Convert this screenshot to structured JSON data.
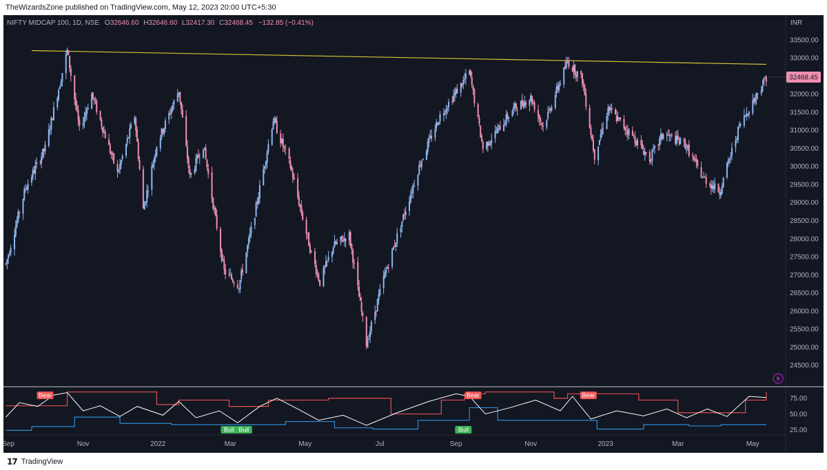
{
  "header": {
    "publisher": "TheWizardsZone published on TradingView.com, May 12, 2023 20:00 UTC+5:30"
  },
  "legend": {
    "symbol": "NIFTY MIDCAP 100, 1D, NSE",
    "open_label": "O",
    "open": "32646.60",
    "high_label": "H",
    "high": "32646.60",
    "low_label": "L",
    "low": "32417.30",
    "close_label": "C",
    "close": "32468.45",
    "change": "−132.85 (−0.41%)"
  },
  "currency": "INR",
  "last_price_badge": "32468.45",
  "brand": "TradingView",
  "colors": {
    "background": "#131722",
    "up_candle": "#8fb8f0",
    "down_candle": "#f090b0",
    "trendline": "#d6c637",
    "upper_band": "#e05050",
    "lower_band": "#2e8bd6",
    "oscillator": "#ffffff",
    "bear_label": "#f05555",
    "bull_label": "#3db255"
  },
  "chart_data": [
    {
      "type": "candlestick",
      "title": "NIFTY MIDCAP 100, 1D, NSE",
      "ylabel": "INR",
      "ylim": [
        24000,
        33800
      ],
      "y_ticks": [
        "33500.00",
        "33000.00",
        "32500.00",
        "32000.00",
        "31500.00",
        "31000.00",
        "30500.00",
        "30000.00",
        "29500.00",
        "29000.00",
        "28500.00",
        "28000.00",
        "27500.00",
        "27000.00",
        "26500.00",
        "26000.00",
        "25500.00",
        "25000.00",
        "24500.00"
      ],
      "x_ticks": [
        "Sep",
        "Nov",
        "2022",
        "Mar",
        "May",
        "Jul",
        "Sep",
        "Nov",
        "2023",
        "Mar",
        "May"
      ],
      "price_path": [
        [
          "Aug-30-2021",
          27300
        ],
        [
          "Sep-15-2021",
          29400
        ],
        [
          "Oct-01-2021",
          30500
        ],
        [
          "Oct-19-2021",
          33200
        ],
        [
          "Oct-29-2021",
          31000
        ],
        [
          "Nov-08-2021",
          32000
        ],
        [
          "Nov-29-2021",
          29800
        ],
        [
          "Dec-13-2021",
          31400
        ],
        [
          "Dec-20-2021",
          28800
        ],
        [
          "Dec-31-2021",
          30600
        ],
        [
          "Jan-18-2022",
          32100
        ],
        [
          "Jan-27-2022",
          29700
        ],
        [
          "Feb-07-2022",
          30600
        ],
        [
          "Feb-24-2022",
          27100
        ],
        [
          "Mar-08-2022",
          26700
        ],
        [
          "Mar-21-2022",
          28700
        ],
        [
          "Apr-05-2022",
          31300
        ],
        [
          "Apr-19-2022",
          30000
        ],
        [
          "May-06-2022",
          27600
        ],
        [
          "May-13-2022",
          26800
        ],
        [
          "May-24-2022",
          27800
        ],
        [
          "Jun-06-2022",
          28100
        ],
        [
          "Jun-20-2022",
          25100
        ],
        [
          "Jul-04-2022",
          26900
        ],
        [
          "Jul-20-2022",
          28600
        ],
        [
          "Aug-03-2022",
          30100
        ],
        [
          "Aug-19-2022",
          31400
        ],
        [
          "Sep-12-2022",
          32600
        ],
        [
          "Sep-23-2022",
          30500
        ],
        [
          "Oct-05-2022",
          31000
        ],
        [
          "Oct-18-2022",
          31600
        ],
        [
          "Nov-01-2022",
          31900
        ],
        [
          "Nov-11-2022",
          31100
        ],
        [
          "Dec-01-2022",
          32900
        ],
        [
          "Dec-13-2022",
          32400
        ],
        [
          "Dec-23-2022",
          30300
        ],
        [
          "Jan-03-2023",
          31600
        ],
        [
          "Jan-24-2023",
          30800
        ],
        [
          "Feb-06-2023",
          30200
        ],
        [
          "Feb-17-2023",
          30900
        ],
        [
          "Mar-07-2023",
          30600
        ],
        [
          "Mar-21-2023",
          29700
        ],
        [
          "Apr-04-2023",
          29300
        ],
        [
          "Apr-20-2023",
          31100
        ],
        [
          "May-12-2023",
          32468
        ]
      ],
      "trendline": {
        "from": [
          "Sep-20-2021",
          33200
        ],
        "to": [
          "May-12-2023",
          32820
        ]
      },
      "last": {
        "date": "May-12-2023",
        "value": 32468.45
      }
    },
    {
      "type": "line",
      "title": "",
      "ylim": [
        20,
        90
      ],
      "y_ticks": [
        "75.00",
        "50.00",
        "25.00"
      ],
      "series": [
        {
          "name": "",
          "role": "upper",
          "x": [
            "Aug-30-2021",
            "Oct-19-2021",
            "Nov-10-2021",
            "Dec-31-2021",
            "Jan-18-2022",
            "Feb-28-2022",
            "Apr-01-2022",
            "May-20-2022",
            "Jul-10-2022",
            "Aug-20-2022",
            "Sep-08-2022",
            "Sep-25-2022",
            "Oct-20-2022",
            "Nov-20-2022",
            "Dec-01-2022",
            "Dec-20-2022",
            "Jan-28-2023",
            "Mar-01-2023",
            "Apr-01-2023",
            "Apr-25-2023",
            "May-12-2023"
          ],
          "values": [
            63,
            85,
            85,
            65,
            72,
            62,
            72,
            75,
            50,
            72,
            82,
            85,
            85,
            75,
            82,
            82,
            72,
            52,
            52,
            72,
            85
          ]
        },
        {
          "name": "",
          "role": "lower",
          "x": [
            "Aug-30-2021",
            "Sep-20-2021",
            "Oct-25-2021",
            "Dec-01-2021",
            "Jan-12-2022",
            "Mar-01-2022",
            "Apr-15-2022",
            "May-25-2022",
            "Jun-25-2022",
            "Aug-01-2022",
            "Sep-12-2022",
            "Oct-05-2022",
            "Nov-25-2022",
            "Dec-25-2022",
            "Feb-01-2023",
            "Mar-10-2023",
            "Apr-05-2023",
            "May-12-2023"
          ],
          "values": [
            24,
            30,
            45,
            35,
            33,
            33,
            38,
            28,
            26,
            40,
            60,
            40,
            40,
            26,
            33,
            31,
            33,
            33
          ]
        },
        {
          "name": "",
          "role": "oscillator",
          "x": [
            "Aug-30-2021",
            "Sep-10-2021",
            "Sep-25-2021",
            "Oct-08-2021",
            "Oct-19-2021",
            "Nov-01-2021",
            "Nov-15-2021",
            "Dec-01-2021",
            "Dec-15-2021",
            "Jan-05-2022",
            "Jan-18-2022",
            "Feb-01-2022",
            "Feb-20-2022",
            "Mar-07-2022",
            "Mar-25-2022",
            "Apr-08-2022",
            "Apr-25-2022",
            "May-12-2022",
            "Jun-01-2022",
            "Jun-20-2022",
            "Jul-15-2022",
            "Aug-10-2022",
            "Sep-01-2022",
            "Sep-12-2022",
            "Sep-25-2022",
            "Oct-15-2022",
            "Nov-05-2022",
            "Nov-25-2022",
            "Dec-05-2022",
            "Dec-20-2022",
            "Jan-10-2023",
            "Feb-01-2023",
            "Feb-20-2023",
            "Mar-08-2023",
            "Mar-25-2023",
            "Apr-10-2023",
            "Apr-28-2023",
            "May-12-2023"
          ],
          "values": [
            45,
            68,
            62,
            80,
            84,
            55,
            63,
            46,
            62,
            48,
            70,
            44,
            55,
            36,
            62,
            75,
            58,
            40,
            48,
            32,
            52,
            70,
            82,
            78,
            50,
            60,
            72,
            55,
            78,
            42,
            55,
            47,
            58,
            44,
            58,
            46,
            78,
            76
          ]
        }
      ],
      "annotations": [
        {
          "text": "Bear",
          "x": "Oct-01-2021"
        },
        {
          "text": "Bull",
          "x": "Feb-28-2022"
        },
        {
          "text": "Bull",
          "x": "Mar-12-2022"
        },
        {
          "text": "Bear",
          "x": "Sep-15-2022"
        },
        {
          "text": "Bull",
          "x": "Sep-07-2022"
        },
        {
          "text": "Bear",
          "x": "Dec-18-2022"
        }
      ]
    }
  ]
}
